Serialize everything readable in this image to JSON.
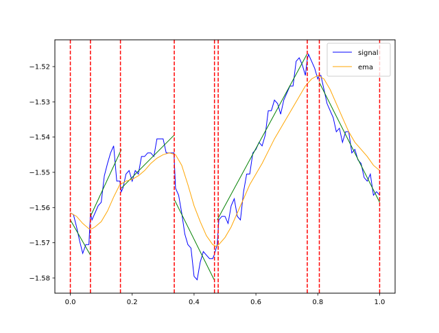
{
  "chart_data": {
    "type": "line",
    "title": "",
    "xlabel": "",
    "ylabel": "",
    "xlim": [
      -0.05,
      1.05
    ],
    "ylim": [
      -1.5843,
      -1.5124
    ],
    "xticks": [
      0.0,
      0.2,
      0.4,
      0.6,
      0.8,
      1.0
    ],
    "xtick_labels": [
      "0.0",
      "0.2",
      "0.4",
      "0.6",
      "0.8",
      "1.0"
    ],
    "yticks": [
      -1.52,
      -1.53,
      -1.54,
      -1.55,
      -1.56,
      -1.57,
      -1.58
    ],
    "ytick_labels": [
      "−1.52",
      "−1.53",
      "−1.54",
      "−1.55",
      "−1.56",
      "−1.57",
      "−1.58"
    ],
    "grid": false,
    "legend_position": "top-right",
    "series": [
      {
        "name": "signal",
        "color": "#0000ff",
        "x": [
          0.0,
          0.01,
          0.02,
          0.03,
          0.04,
          0.05,
          0.06,
          0.065,
          0.07,
          0.08,
          0.09,
          0.1,
          0.11,
          0.12,
          0.13,
          0.14,
          0.15,
          0.16,
          0.165,
          0.17,
          0.18,
          0.19,
          0.2,
          0.21,
          0.22,
          0.23,
          0.24,
          0.25,
          0.26,
          0.27,
          0.28,
          0.29,
          0.3,
          0.31,
          0.32,
          0.335,
          0.34,
          0.35,
          0.36,
          0.37,
          0.38,
          0.39,
          0.4,
          0.41,
          0.42,
          0.43,
          0.44,
          0.45,
          0.46,
          0.465,
          0.475,
          0.48,
          0.49,
          0.5,
          0.51,
          0.52,
          0.53,
          0.54,
          0.55,
          0.56,
          0.57,
          0.58,
          0.59,
          0.6,
          0.61,
          0.62,
          0.63,
          0.64,
          0.65,
          0.66,
          0.67,
          0.68,
          0.69,
          0.7,
          0.71,
          0.72,
          0.73,
          0.74,
          0.75,
          0.76,
          0.765,
          0.77,
          0.78,
          0.79,
          0.8,
          0.805,
          0.81,
          0.82,
          0.83,
          0.84,
          0.85,
          0.86,
          0.87,
          0.88,
          0.89,
          0.9,
          0.91,
          0.92,
          0.93,
          0.94,
          0.95,
          0.96,
          0.97,
          0.98,
          0.99,
          1.0
        ],
        "y": [
          -1.5615,
          -1.562,
          -1.5655,
          -1.5695,
          -1.573,
          -1.5705,
          -1.5705,
          -1.5615,
          -1.5635,
          -1.5615,
          -1.5595,
          -1.5585,
          -1.551,
          -1.5475,
          -1.5445,
          -1.5425,
          -1.5525,
          -1.5525,
          -1.5555,
          -1.5545,
          -1.5505,
          -1.5495,
          -1.5525,
          -1.5495,
          -1.5505,
          -1.5455,
          -1.5455,
          -1.5445,
          -1.5445,
          -1.5455,
          -1.5405,
          -1.5405,
          -1.5405,
          -1.5445,
          -1.5445,
          -1.5445,
          -1.5545,
          -1.5565,
          -1.5615,
          -1.5675,
          -1.5705,
          -1.5715,
          -1.5795,
          -1.5805,
          -1.5755,
          -1.5725,
          -1.5735,
          -1.5745,
          -1.5745,
          -1.5735,
          -1.5705,
          -1.5635,
          -1.5625,
          -1.5625,
          -1.5645,
          -1.5595,
          -1.5575,
          -1.5625,
          -1.5635,
          -1.5555,
          -1.5505,
          -1.5505,
          -1.5445,
          -1.5435,
          -1.5415,
          -1.5425,
          -1.5395,
          -1.5325,
          -1.5325,
          -1.5295,
          -1.5305,
          -1.5335,
          -1.5295,
          -1.5275,
          -1.5255,
          -1.5255,
          -1.5185,
          -1.5175,
          -1.5195,
          -1.5225,
          -1.5185,
          -1.5165,
          -1.5185,
          -1.5205,
          -1.5235,
          -1.5225,
          -1.5225,
          -1.5265,
          -1.5305,
          -1.5325,
          -1.5345,
          -1.5385,
          -1.5375,
          -1.5415,
          -1.5385,
          -1.5385,
          -1.5445,
          -1.5435,
          -1.5465,
          -1.5475,
          -1.5515,
          -1.5525,
          -1.5505,
          -1.5565,
          -1.5555,
          -1.5565
        ]
      },
      {
        "name": "ema",
        "color": "#ffa500",
        "x": [
          0.0,
          0.02,
          0.04,
          0.06,
          0.07,
          0.08,
          0.1,
          0.12,
          0.14,
          0.16,
          0.18,
          0.2,
          0.22,
          0.24,
          0.26,
          0.28,
          0.3,
          0.32,
          0.34,
          0.36,
          0.38,
          0.4,
          0.42,
          0.44,
          0.46,
          0.47,
          0.48,
          0.5,
          0.52,
          0.54,
          0.56,
          0.58,
          0.6,
          0.62,
          0.64,
          0.66,
          0.68,
          0.7,
          0.72,
          0.74,
          0.76,
          0.78,
          0.8,
          0.82,
          0.84,
          0.86,
          0.88,
          0.9,
          0.92,
          0.94,
          0.96,
          0.98,
          1.0
        ],
        "y": [
          -1.5615,
          -1.5625,
          -1.5645,
          -1.566,
          -1.566,
          -1.5655,
          -1.564,
          -1.561,
          -1.557,
          -1.5535,
          -1.5525,
          -1.552,
          -1.551,
          -1.5495,
          -1.5475,
          -1.546,
          -1.545,
          -1.5445,
          -1.545,
          -1.548,
          -1.5535,
          -1.5595,
          -1.564,
          -1.568,
          -1.5705,
          -1.571,
          -1.5705,
          -1.5685,
          -1.5655,
          -1.5615,
          -1.5575,
          -1.5535,
          -1.5505,
          -1.5475,
          -1.544,
          -1.5405,
          -1.5375,
          -1.5345,
          -1.5315,
          -1.5285,
          -1.5255,
          -1.5235,
          -1.5225,
          -1.5235,
          -1.5265,
          -1.5305,
          -1.5345,
          -1.5385,
          -1.5415,
          -1.5435,
          -1.5455,
          -1.548,
          -1.5495
        ]
      }
    ],
    "trend_segments": {
      "color": "#008000",
      "segments": [
        {
          "x": [
            0.0,
            0.065
          ],
          "y": [
            -1.5635,
            -1.5735
          ]
        },
        {
          "x": [
            0.065,
            0.165
          ],
          "y": [
            -1.5625,
            -1.5435
          ]
        },
        {
          "x": [
            0.165,
            0.335
          ],
          "y": [
            -1.5545,
            -1.5395
          ]
        },
        {
          "x": [
            0.335,
            0.465
          ],
          "y": [
            -1.5575,
            -1.5805
          ]
        },
        {
          "x": [
            0.475,
            0.765
          ],
          "y": [
            -1.5635,
            -1.5165
          ]
        },
        {
          "x": [
            0.805,
            1.0
          ],
          "y": [
            -1.5245,
            -1.5585
          ]
        }
      ]
    },
    "vertical_lines": {
      "color": "#ff0000",
      "style": "dashed",
      "x": [
        0.0,
        0.065,
        0.162,
        0.336,
        0.466,
        0.478,
        0.766,
        0.805,
        1.0
      ]
    }
  }
}
